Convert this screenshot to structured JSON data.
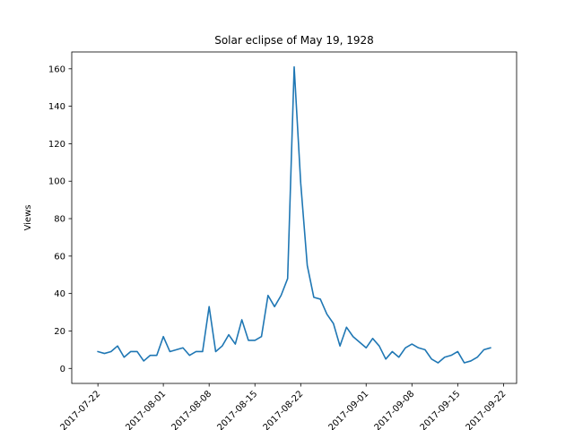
{
  "chart_data": {
    "type": "line",
    "title": "Solar eclipse of May 19, 1928",
    "xlabel": "",
    "ylabel": "Views",
    "x_start": "2017-07-22",
    "x_end": "2017-09-20",
    "xlim": [
      "2017-07-18",
      "2017-09-24"
    ],
    "ylim": [
      -8,
      169
    ],
    "x_ticks": [
      "2017-07-22",
      "2017-08-01",
      "2017-08-08",
      "2017-08-15",
      "2017-08-22",
      "2017-09-01",
      "2017-09-08",
      "2017-09-15",
      "2017-09-22"
    ],
    "y_ticks": [
      0,
      20,
      40,
      60,
      80,
      100,
      120,
      140,
      160
    ],
    "grid": false,
    "line_color": "#1f77b4",
    "series": [
      {
        "values": [
          9,
          8,
          9,
          12,
          6,
          9,
          9,
          4,
          7,
          7,
          17,
          9,
          10,
          11,
          7,
          9,
          9,
          33,
          9,
          12,
          18,
          13,
          26,
          15,
          15,
          17,
          39,
          33,
          39,
          48,
          161,
          99,
          55,
          38,
          37,
          29,
          24,
          12,
          22,
          17,
          14,
          11,
          16,
          12,
          5,
          9,
          6,
          11,
          13,
          11,
          10,
          5,
          3,
          6,
          7,
          9,
          3,
          4,
          6,
          10,
          11
        ]
      }
    ]
  }
}
